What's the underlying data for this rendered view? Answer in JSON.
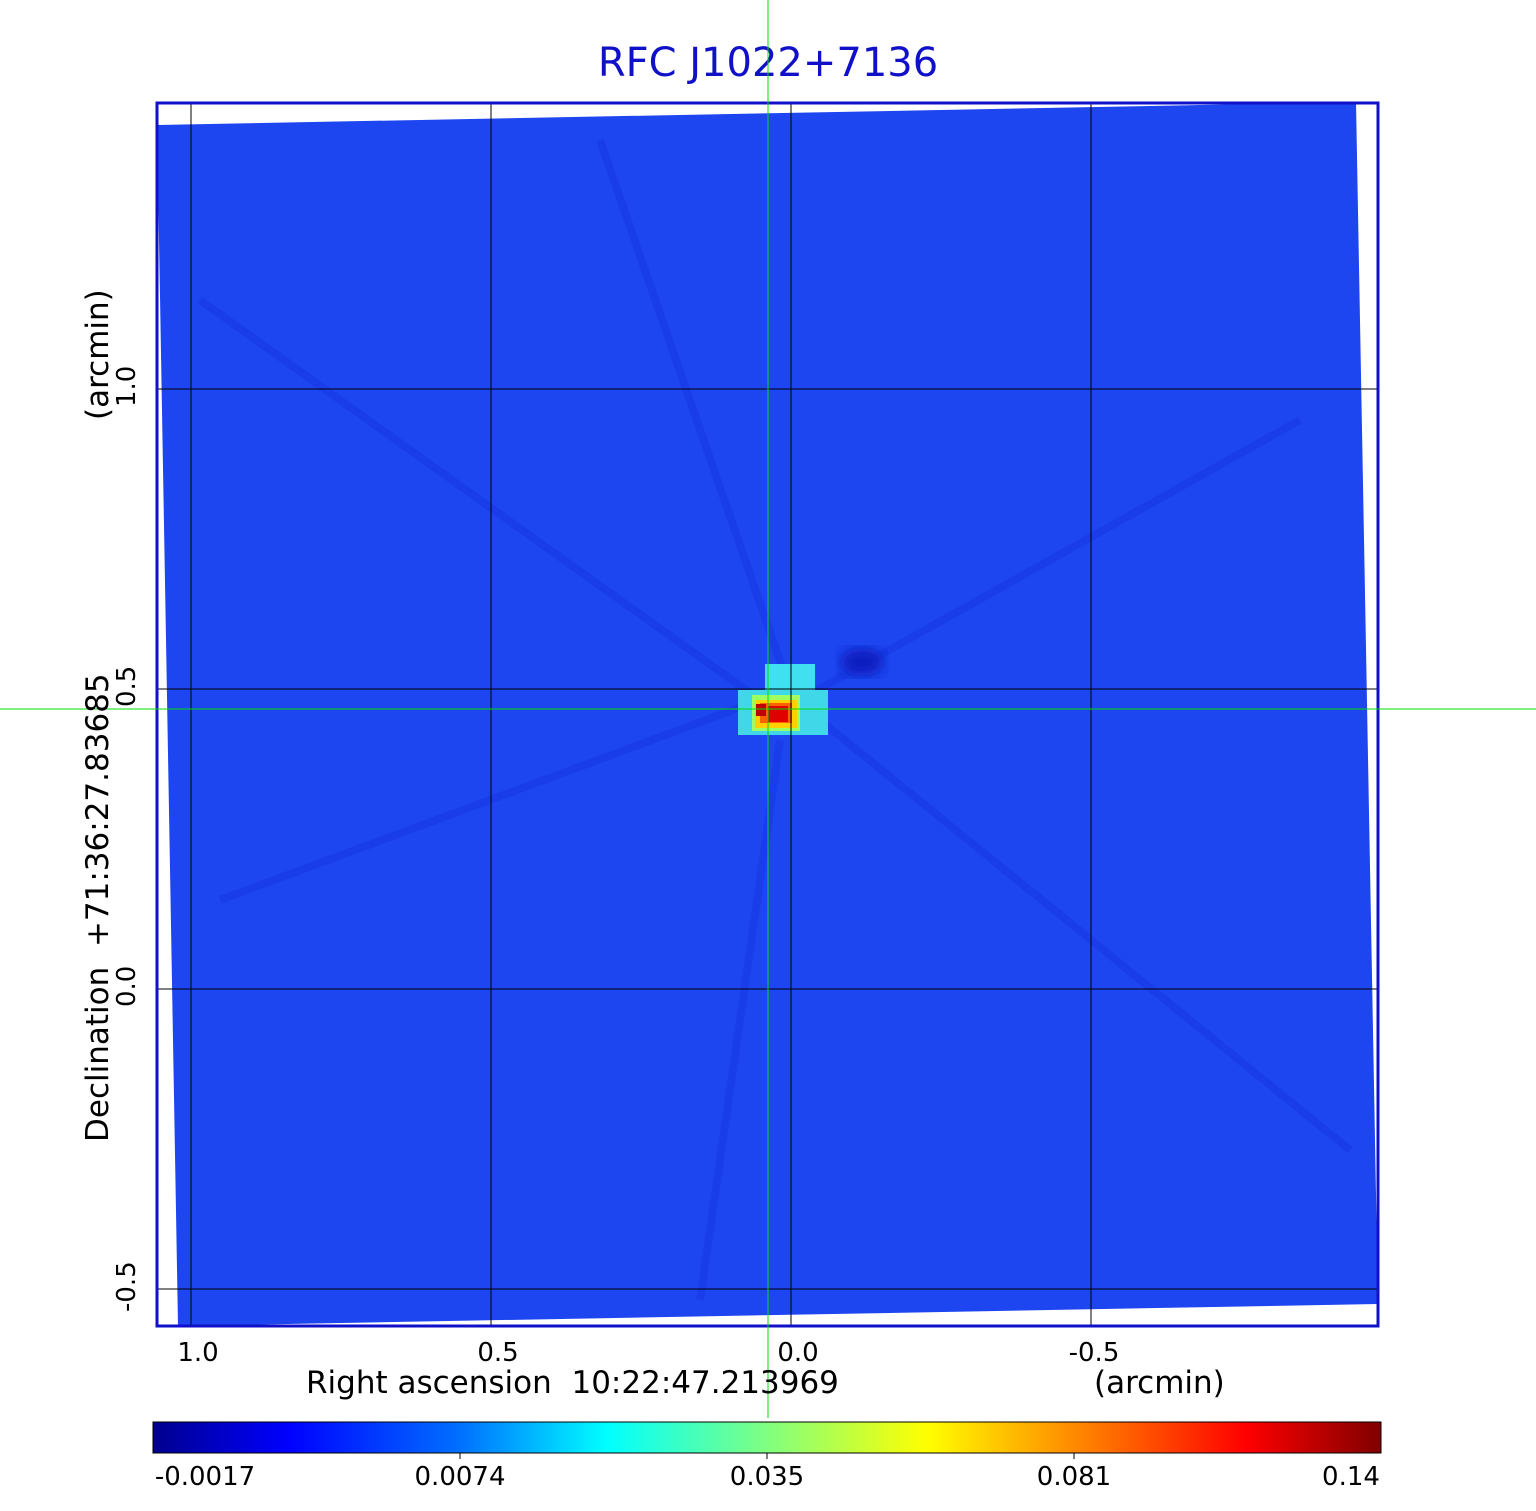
{
  "title": "RFC J1022+7136",
  "x_axis": {
    "label": "Right ascension  10:22:47.213969",
    "unit": "(arcmin)",
    "ticks": [
      "1.0",
      "0.5",
      "0.0",
      "-0.5"
    ]
  },
  "y_axis": {
    "label": "Declination  +71:36:27.83685",
    "unit": "(arcmin)",
    "ticks": [
      "1.0",
      "0.5",
      "0.0",
      "-0.5"
    ]
  },
  "colorbar": {
    "colormap": "jet",
    "ticks": [
      "-0.0017",
      "0.0074",
      "0.035",
      "0.081",
      "0.14"
    ]
  },
  "colors": {
    "frame": "#1010c8",
    "background_map": "#1e46f0",
    "crosshair": "#00dd00",
    "grid": "#000000"
  }
}
